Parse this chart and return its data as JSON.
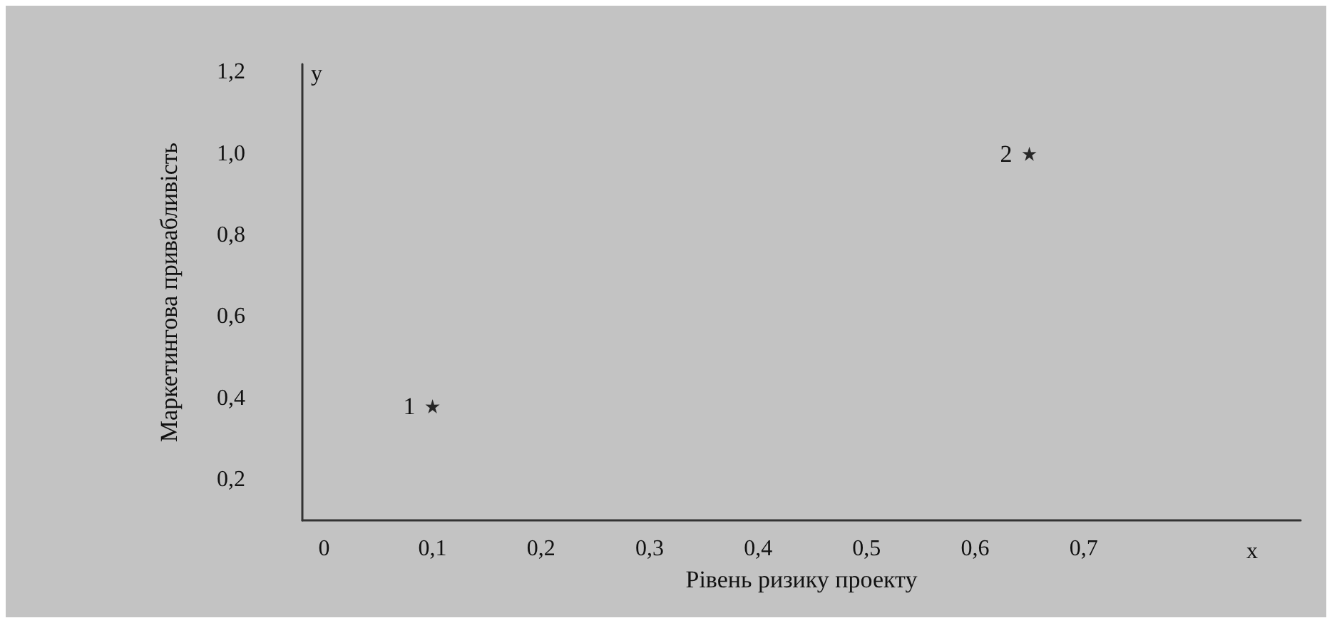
{
  "chart_data": {
    "type": "scatter",
    "xlabel": "Рівень ризику проекту",
    "ylabel": "Маркетингова привабливість",
    "annotations": [
      "x",
      "y",
      {
        "text": "1",
        "x": 0.1,
        "y": 0.38
      },
      {
        "text": "2",
        "x": 0.65,
        "y": 1.0
      }
    ],
    "series": [
      {
        "color": "#000000",
        "x": [
          0.1,
          0.65
        ],
        "values": [
          0.38,
          1.0
        ]
      }
    ],
    "xlim": [
      -0.02,
      0.9
    ],
    "ylim": [
      0.1,
      1.22
    ],
    "xticks": [
      {
        "value": 0,
        "label": "0"
      },
      {
        "value": 0.1,
        "label": "0,1"
      },
      {
        "value": 0.2,
        "label": "0,2"
      },
      {
        "value": 0.3,
        "label": "0,3"
      },
      {
        "value": 0.4,
        "label": "0,4"
      },
      {
        "value": 0.5,
        "label": "0,5"
      },
      {
        "value": 0.6,
        "label": "0,6"
      },
      {
        "value": 0.7,
        "label": "0,7"
      }
    ],
    "yticks": [
      {
        "value": 0.2,
        "label": "0,2"
      },
      {
        "value": 0.4,
        "label": "0,4"
      },
      {
        "value": 0.6,
        "label": "0,6"
      },
      {
        "value": 0.8,
        "label": "0,8"
      },
      {
        "value": 1.0,
        "label": "1,0"
      },
      {
        "value": 1.2,
        "label": "1,2"
      }
    ],
    "grid": false,
    "marker": "star"
  }
}
